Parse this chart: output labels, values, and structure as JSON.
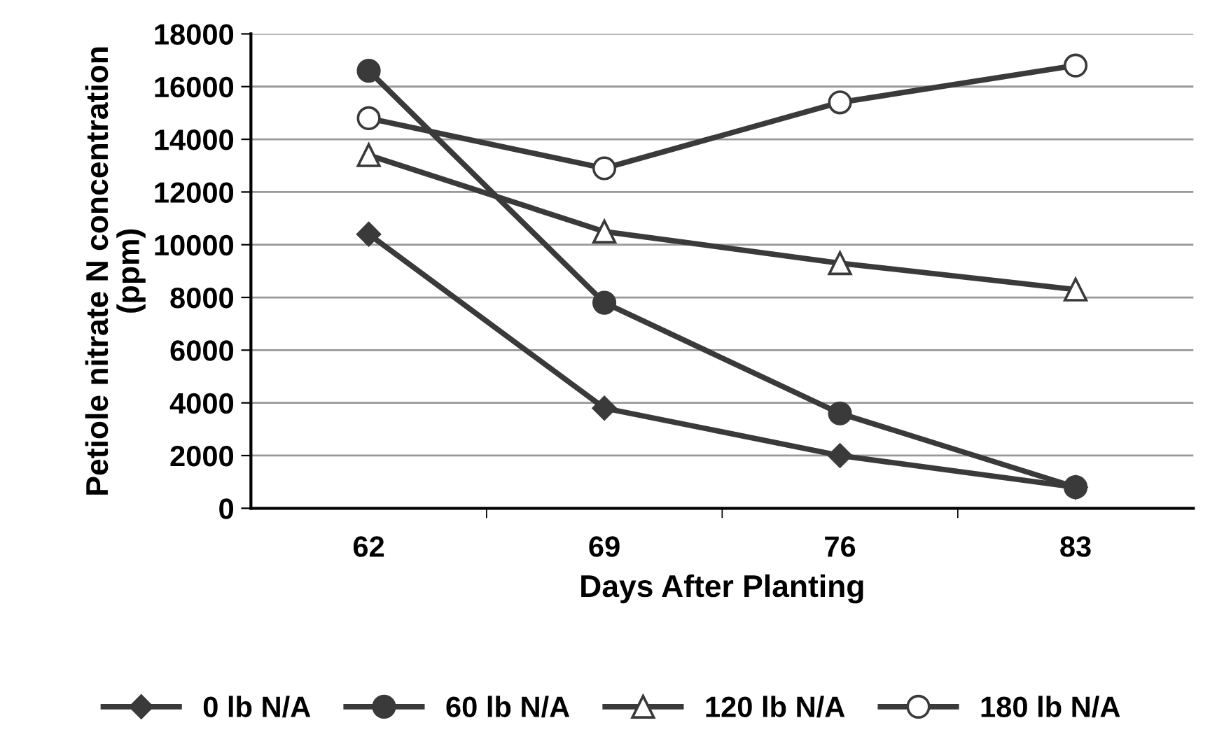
{
  "chart_data": {
    "type": "line",
    "xlabel": "Days After Planting",
    "ylabel": "Petiole nitrate N concentration\n(ppm)",
    "categories": [
      "62",
      "69",
      "76",
      "83"
    ],
    "series": [
      {
        "name": "0 lb N/A",
        "color": "#3a3a3a",
        "marker": "diamond",
        "values": [
          10400,
          3800,
          2000,
          800
        ]
      },
      {
        "name": "60 lb N/A",
        "color": "#3a3a3a",
        "marker": "circle",
        "values": [
          16600,
          7800,
          3600,
          800
        ]
      },
      {
        "name": "120 lb N/A",
        "color": "#3a3a3a",
        "marker": "triangle",
        "values": [
          13400,
          10500,
          9300,
          8300
        ]
      },
      {
        "name": "180 lb N/A",
        "color": "#3a3a3a",
        "marker": "circle-open",
        "values": [
          14800,
          12900,
          15400,
          16800
        ]
      }
    ],
    "ylim": [
      0,
      18000
    ],
    "yticks": [
      0,
      2000,
      4000,
      6000,
      8000,
      10000,
      12000,
      14000,
      16000,
      18000
    ],
    "grid": "y",
    "legend": "bottom",
    "line_style": "solid"
  }
}
